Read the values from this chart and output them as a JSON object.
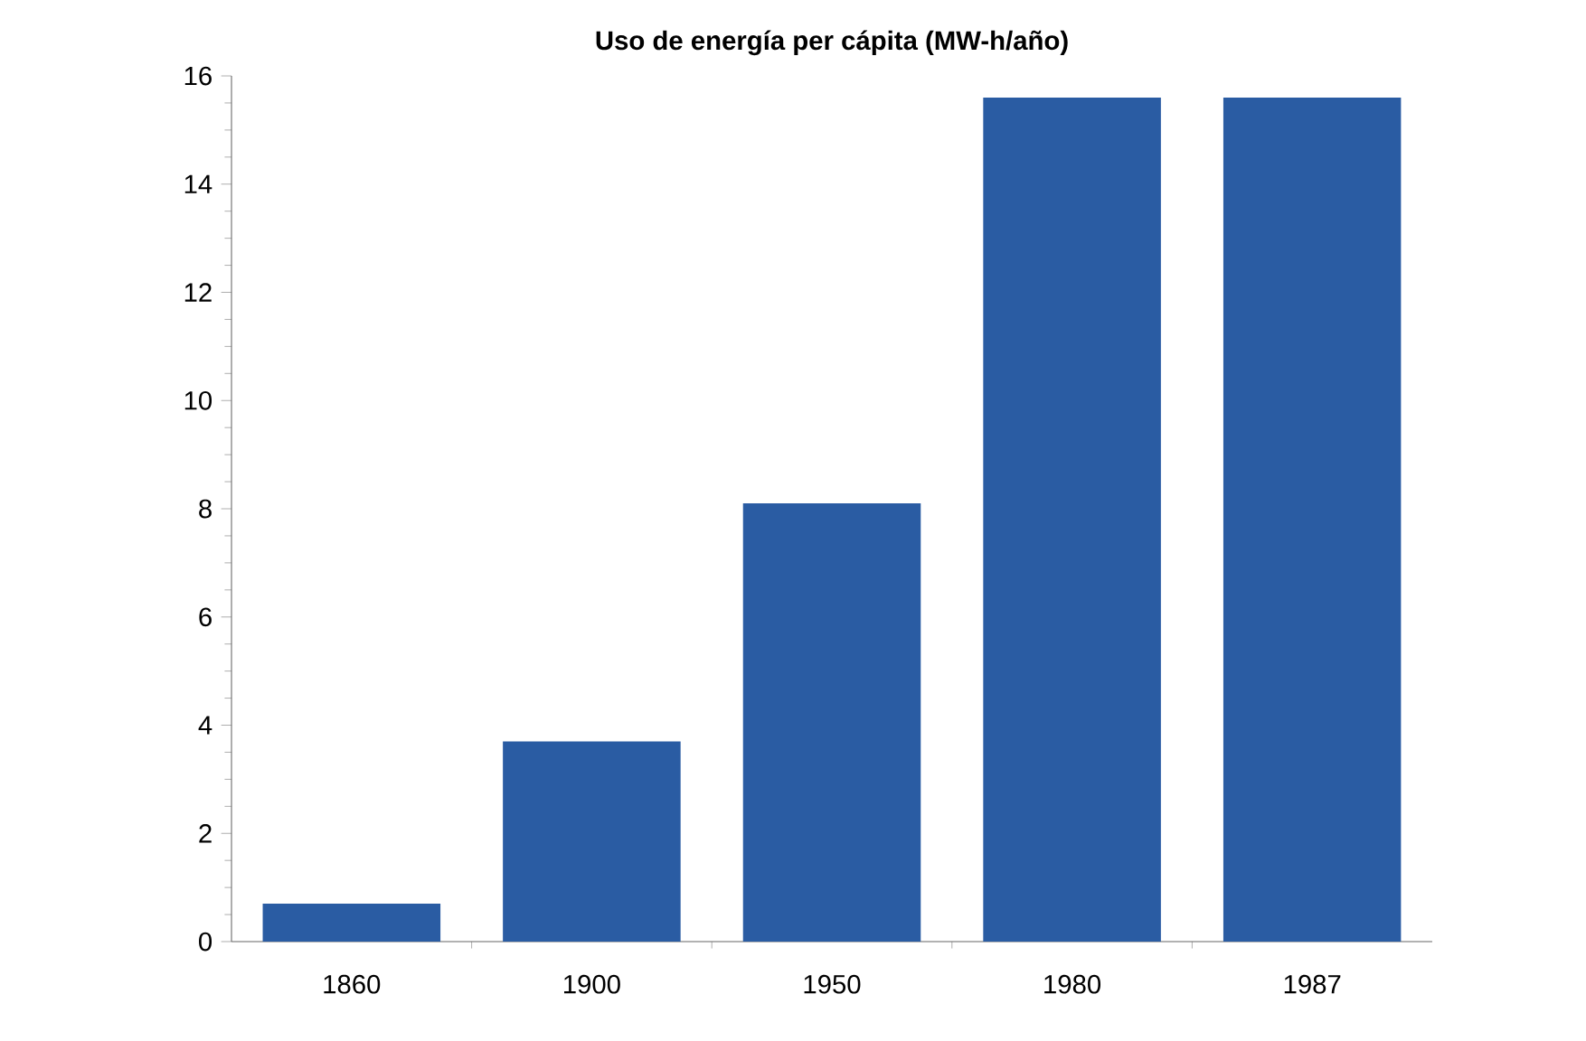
{
  "chart_data": {
    "type": "bar",
    "title": "Uso de energía per cápita (MW-h/año)",
    "categories": [
      "1860",
      "1900",
      "1950",
      "1980",
      "1987"
    ],
    "values": [
      0.7,
      3.7,
      8.1,
      15.6,
      15.6
    ],
    "color": "#2a5ca3",
    "ylim": [
      0,
      16
    ],
    "yticks": [
      0,
      2,
      4,
      6,
      8,
      10,
      12,
      14,
      16
    ],
    "grid": false
  }
}
